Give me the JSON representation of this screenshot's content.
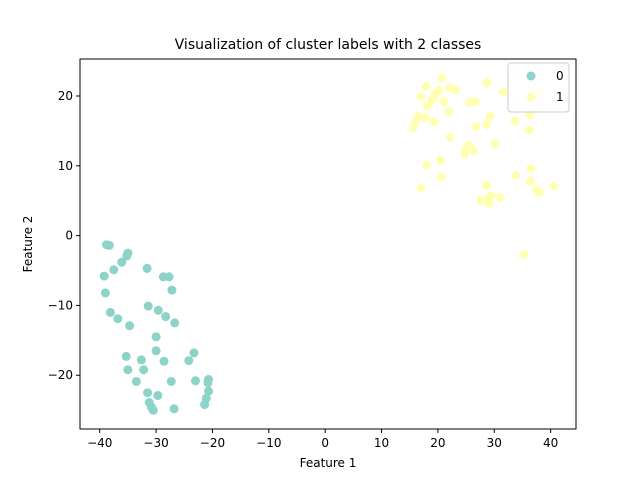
{
  "chart_data": {
    "type": "scatter",
    "title": "Visualization of cluster labels with 2 classes",
    "xlabel": "Feature 1",
    "ylabel": "Feature 2",
    "xlim": [
      -43.5,
      44.5
    ],
    "ylim": [
      -27.7,
      25.3
    ],
    "xticks": [
      -40,
      -30,
      -20,
      -10,
      0,
      10,
      20,
      30,
      40
    ],
    "yticks": [
      -20,
      -10,
      0,
      10,
      20
    ],
    "grid": false,
    "legend_position": "top-right",
    "series": [
      {
        "name": "0",
        "color": "#8dd3c7",
        "points": [
          [
            -38.3,
            -1.4
          ],
          [
            -38.8,
            -1.3
          ],
          [
            -35.0,
            -2.5
          ],
          [
            -35.2,
            -2.9
          ],
          [
            -36.1,
            -3.8
          ],
          [
            -37.5,
            -4.9
          ],
          [
            -39.2,
            -5.8
          ],
          [
            -31.6,
            -4.7
          ],
          [
            -28.7,
            -5.9
          ],
          [
            -27.7,
            -5.9
          ],
          [
            -39.0,
            -8.2
          ],
          [
            -27.2,
            -7.8
          ],
          [
            -31.4,
            -10.1
          ],
          [
            -29.6,
            -10.7
          ],
          [
            -28.3,
            -11.6
          ],
          [
            -38.1,
            -11.0
          ],
          [
            -36.8,
            -11.9
          ],
          [
            -34.7,
            -12.9
          ],
          [
            -26.7,
            -12.5
          ],
          [
            -30.0,
            -14.5
          ],
          [
            -30.0,
            -16.5
          ],
          [
            -35.3,
            -17.3
          ],
          [
            -32.6,
            -17.8
          ],
          [
            -28.6,
            -18.0
          ],
          [
            -23.3,
            -16.8
          ],
          [
            -24.2,
            -17.9
          ],
          [
            -35.0,
            -19.2
          ],
          [
            -32.2,
            -19.2
          ],
          [
            -33.5,
            -20.9
          ],
          [
            -27.3,
            -20.9
          ],
          [
            -23.0,
            -20.8
          ],
          [
            -20.7,
            -20.6
          ],
          [
            -20.8,
            -21.1
          ],
          [
            -31.5,
            -22.5
          ],
          [
            -29.7,
            -22.9
          ],
          [
            -20.7,
            -22.3
          ],
          [
            -21.1,
            -23.3
          ],
          [
            -31.2,
            -23.9
          ],
          [
            -30.8,
            -24.6
          ],
          [
            -30.5,
            -25.0
          ],
          [
            -26.8,
            -24.8
          ],
          [
            -21.4,
            -24.2
          ]
        ]
      },
      {
        "name": "1",
        "color": "#ffffb3",
        "points": [
          [
            20.7,
            22.6
          ],
          [
            17.9,
            21.4
          ],
          [
            28.7,
            21.9
          ],
          [
            22.1,
            21.2
          ],
          [
            20.2,
            20.8
          ],
          [
            23.2,
            20.9
          ],
          [
            19.5,
            20.2
          ],
          [
            17.0,
            19.9
          ],
          [
            19.0,
            19.4
          ],
          [
            21.1,
            19.2
          ],
          [
            18.1,
            18.6
          ],
          [
            26.6,
            19.2
          ],
          [
            25.6,
            19.0
          ],
          [
            31.6,
            20.5
          ],
          [
            38.2,
            20.5
          ],
          [
            36.3,
            17.3
          ],
          [
            22.0,
            17.8
          ],
          [
            16.5,
            17.1
          ],
          [
            17.7,
            16.9
          ],
          [
            16.1,
            16.4
          ],
          [
            19.3,
            16.3
          ],
          [
            15.6,
            15.4
          ],
          [
            29.3,
            17.1
          ],
          [
            26.7,
            15.6
          ],
          [
            28.6,
            15.9
          ],
          [
            33.7,
            16.4
          ],
          [
            36.2,
            15.1
          ],
          [
            22.2,
            14.1
          ],
          [
            30.1,
            13.2
          ],
          [
            25.0,
            12.5
          ],
          [
            25.5,
            12.9
          ],
          [
            26.3,
            12.2
          ],
          [
            24.7,
            11.7
          ],
          [
            20.5,
            10.8
          ],
          [
            18.0,
            10.1
          ],
          [
            36.5,
            9.6
          ],
          [
            20.6,
            8.4
          ],
          [
            33.8,
            8.6
          ],
          [
            36.4,
            7.8
          ],
          [
            28.6,
            7.2
          ],
          [
            37.5,
            6.6
          ],
          [
            38.0,
            6.2
          ],
          [
            40.6,
            7.1
          ],
          [
            17.0,
            6.8
          ],
          [
            29.4,
            5.7
          ],
          [
            31.0,
            5.5
          ],
          [
            28.8,
            5.2
          ],
          [
            27.6,
            5.0
          ],
          [
            29.1,
            4.6
          ],
          [
            35.2,
            -2.7
          ]
        ]
      }
    ]
  }
}
